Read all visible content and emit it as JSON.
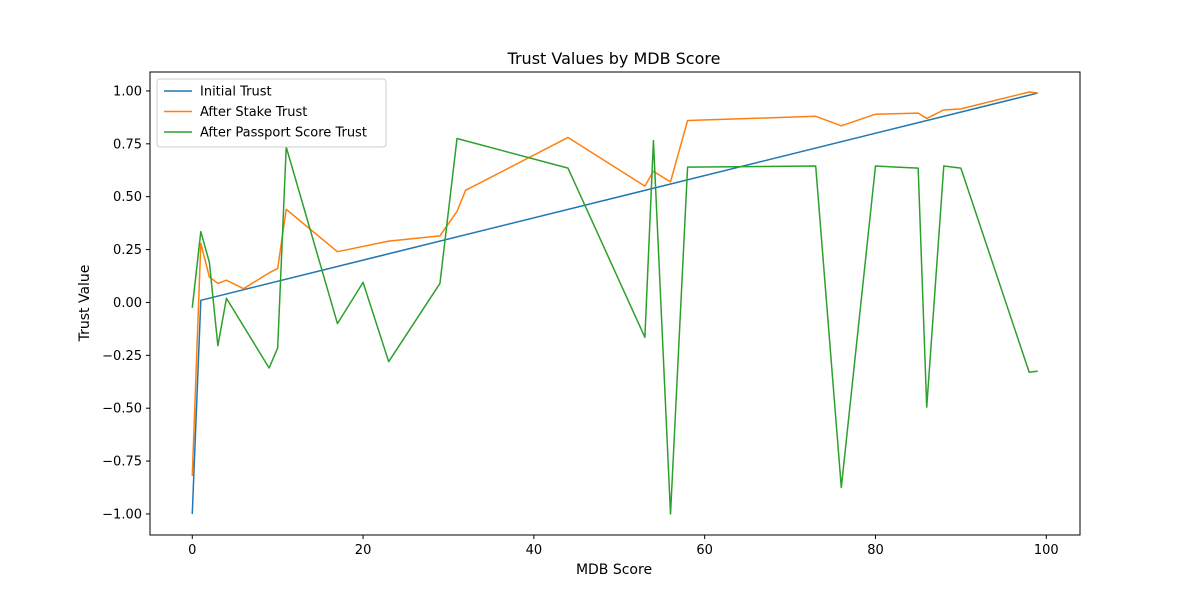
{
  "chart_data": {
    "type": "line",
    "title": "Trust Values by MDB Score",
    "xlabel": "MDB Score",
    "ylabel": "Trust Value",
    "xlim": [
      -4.95,
      103.95
    ],
    "ylim": [
      -1.0995,
      1.0895
    ],
    "xticks": [
      0,
      20,
      40,
      60,
      80,
      100
    ],
    "xtick_labels": [
      "0",
      "20",
      "40",
      "60",
      "80",
      "100"
    ],
    "yticks": [
      -1.0,
      -0.75,
      -0.5,
      -0.25,
      0.0,
      0.25,
      0.5,
      0.75,
      1.0
    ],
    "ytick_labels": [
      "−1.00",
      "−0.75",
      "−0.50",
      "−0.25",
      "0.00",
      "0.25",
      "0.50",
      "0.75",
      "1.00"
    ],
    "grid": false,
    "legend_position": "upper-left",
    "series": [
      {
        "name": "Initial Trust",
        "color": "#1f77b4",
        "points": [
          [
            0,
            -1.0
          ],
          [
            1,
            0.01
          ],
          [
            99,
            0.99
          ]
        ]
      },
      {
        "name": "After Stake Trust",
        "color": "#ff7f0e",
        "points": [
          [
            0,
            -0.82
          ],
          [
            1,
            0.28
          ],
          [
            2,
            0.12
          ],
          [
            3,
            0.09
          ],
          [
            4,
            0.105
          ],
          [
            6,
            0.065
          ],
          [
            9,
            0.14
          ],
          [
            10,
            0.16
          ],
          [
            11,
            0.44
          ],
          [
            17,
            0.24
          ],
          [
            23,
            0.29
          ],
          [
            29,
            0.315
          ],
          [
            31,
            0.43
          ],
          [
            32,
            0.53
          ],
          [
            44,
            0.78
          ],
          [
            53,
            0.55
          ],
          [
            54,
            0.62
          ],
          [
            56,
            0.57
          ],
          [
            58,
            0.86
          ],
          [
            73,
            0.88
          ],
          [
            76,
            0.835
          ],
          [
            80,
            0.89
          ],
          [
            85,
            0.895
          ],
          [
            86,
            0.87
          ],
          [
            88,
            0.91
          ],
          [
            90,
            0.915
          ],
          [
            98,
            0.995
          ],
          [
            99,
            0.99
          ]
        ]
      },
      {
        "name": "After Passport Score Trust",
        "color": "#2ca02c",
        "points": [
          [
            0,
            -0.025
          ],
          [
            1,
            0.335
          ],
          [
            2,
            0.19
          ],
          [
            3,
            -0.205
          ],
          [
            4,
            0.02
          ],
          [
            9,
            -0.31
          ],
          [
            10,
            -0.215
          ],
          [
            11,
            0.735
          ],
          [
            17,
            -0.1
          ],
          [
            20,
            0.095
          ],
          [
            23,
            -0.28
          ],
          [
            29,
            0.09
          ],
          [
            31,
            0.775
          ],
          [
            44,
            0.635
          ],
          [
            53,
            -0.165
          ],
          [
            54,
            0.765
          ],
          [
            56,
            -1.0
          ],
          [
            58,
            0.64
          ],
          [
            73,
            0.645
          ],
          [
            76,
            -0.875
          ],
          [
            80,
            0.645
          ],
          [
            85,
            0.635
          ],
          [
            86,
            -0.495
          ],
          [
            88,
            0.645
          ],
          [
            90,
            0.635
          ],
          [
            98,
            -0.33
          ],
          [
            99,
            -0.325
          ]
        ]
      }
    ]
  }
}
